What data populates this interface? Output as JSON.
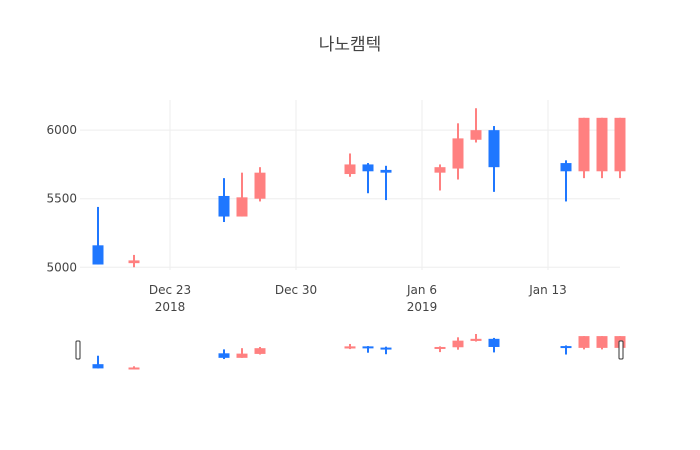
{
  "chart_data": {
    "type": "candlestick",
    "title": "나노캠텍",
    "xlabel": "",
    "ylabel": "",
    "colors": {
      "increasing": "#ff8080",
      "decreasing": "#1f77ff"
    },
    "x_ticks": [
      {
        "date": "2018-12-23",
        "label": "Dec 23",
        "sublabel": "2018"
      },
      {
        "date": "2018-12-30",
        "label": "Dec 30",
        "sublabel": ""
      },
      {
        "date": "2019-01-06",
        "label": "Jan 6",
        "sublabel": "2019"
      },
      {
        "date": "2019-01-13",
        "label": "Jan 13",
        "sublabel": ""
      }
    ],
    "y_ticks": [
      5000,
      5500,
      6000
    ],
    "xlim": [
      "2018-12-18",
      "2019-01-17"
    ],
    "ylim": [
      4980,
      6220
    ],
    "grid": true,
    "rangeslider": true,
    "candles": [
      {
        "date": "2018-12-19",
        "open": 5160,
        "high": 5440,
        "low": 5020,
        "close": 5020
      },
      {
        "date": "2018-12-21",
        "open": 5030,
        "high": 5090,
        "low": 5000,
        "close": 5050
      },
      {
        "date": "2018-12-26",
        "open": 5520,
        "high": 5650,
        "low": 5330,
        "close": 5370
      },
      {
        "date": "2018-12-27",
        "open": 5370,
        "high": 5690,
        "low": 5370,
        "close": 5510
      },
      {
        "date": "2018-12-28",
        "open": 5500,
        "high": 5730,
        "low": 5480,
        "close": 5690
      },
      {
        "date": "2019-01-02",
        "open": 5680,
        "high": 5830,
        "low": 5660,
        "close": 5750
      },
      {
        "date": "2019-01-03",
        "open": 5750,
        "high": 5760,
        "low": 5540,
        "close": 5700
      },
      {
        "date": "2019-01-04",
        "open": 5710,
        "high": 5740,
        "low": 5490,
        "close": 5690
      },
      {
        "date": "2019-01-07",
        "open": 5690,
        "high": 5750,
        "low": 5560,
        "close": 5730
      },
      {
        "date": "2019-01-08",
        "open": 5720,
        "high": 6050,
        "low": 5640,
        "close": 5940
      },
      {
        "date": "2019-01-09",
        "open": 5930,
        "high": 6160,
        "low": 5910,
        "close": 6000
      },
      {
        "date": "2019-01-10",
        "open": 6000,
        "high": 6030,
        "low": 5550,
        "close": 5730
      },
      {
        "date": "2019-01-14",
        "open": 5760,
        "high": 5780,
        "low": 5480,
        "close": 5700
      },
      {
        "date": "2019-01-15",
        "open": 5700,
        "high": 6090,
        "low": 5650,
        "close": 6090
      },
      {
        "date": "2019-01-16",
        "open": 5700,
        "high": 6090,
        "low": 5650,
        "close": 6090
      },
      {
        "date": "2019-01-17",
        "open": 5700,
        "high": 6090,
        "low": 5650,
        "close": 6090
      }
    ]
  }
}
